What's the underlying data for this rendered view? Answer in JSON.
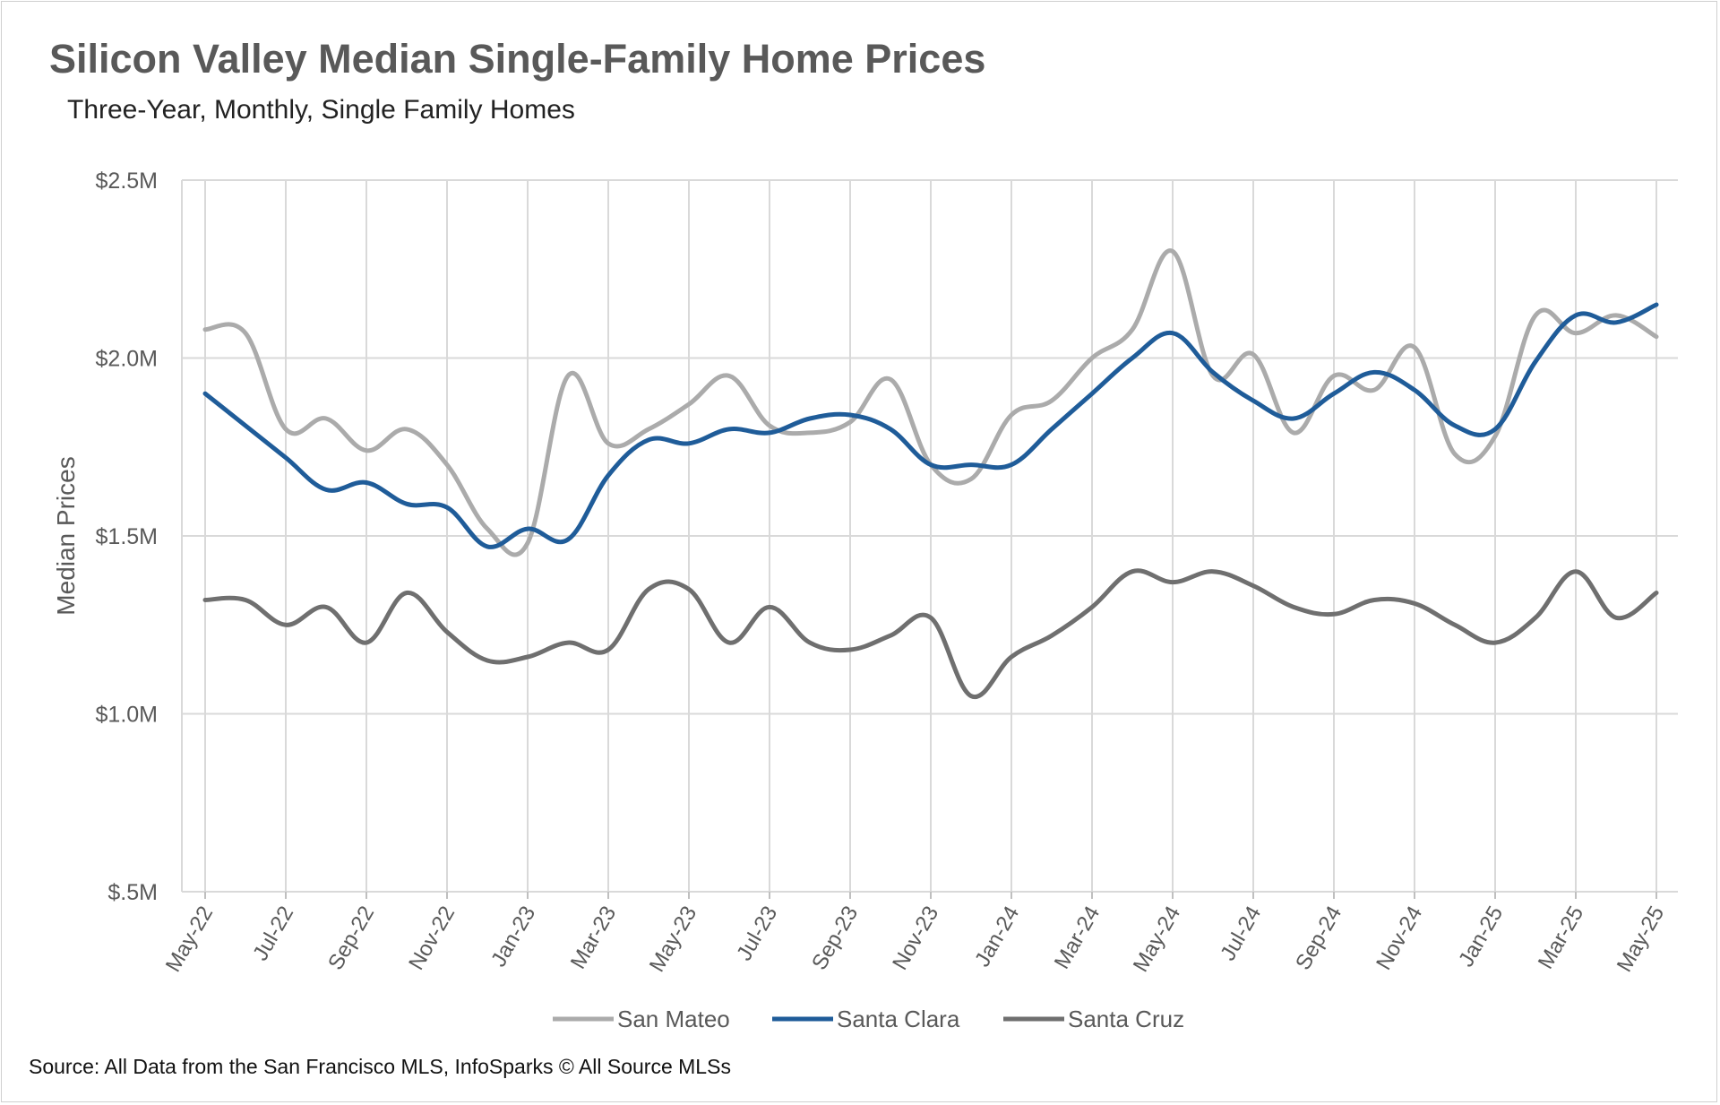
{
  "chart_data": {
    "type": "line",
    "title": "Silicon Valley Median Single-Family Home Prices",
    "subtitle": "Three-Year, Monthly, Single Family Homes",
    "ylabel": "Median Prices",
    "xlabel": "",
    "source": "Source: All Data from the San Francisco MLS, InfoSparks © All Source MLSs",
    "ylim": [
      0.5,
      2.5
    ],
    "y_unit": "$M",
    "y_ticks": [
      {
        "value": 2.5,
        "label": "$2.5M"
      },
      {
        "value": 2.0,
        "label": "$2.0M"
      },
      {
        "value": 1.5,
        "label": "$1.5M"
      },
      {
        "value": 1.0,
        "label": "$1.0M"
      },
      {
        "value": 0.5,
        "label": "$.5M"
      }
    ],
    "x": [
      "May-22",
      "Jun-22",
      "Jul-22",
      "Aug-22",
      "Sep-22",
      "Oct-22",
      "Nov-22",
      "Dec-22",
      "Jan-23",
      "Feb-23",
      "Mar-23",
      "Apr-23",
      "May-23",
      "Jun-23",
      "Jul-23",
      "Aug-23",
      "Sep-23",
      "Oct-23",
      "Nov-23",
      "Dec-23",
      "Jan-24",
      "Feb-24",
      "Mar-24",
      "Apr-24",
      "May-24",
      "Jun-24",
      "Jul-24",
      "Aug-24",
      "Sep-24",
      "Oct-24",
      "Nov-24",
      "Dec-24",
      "Jan-25",
      "Feb-25",
      "Mar-25",
      "Apr-25",
      "May-25"
    ],
    "x_tick_labels": [
      "May-22",
      "Jul-22",
      "Sep-22",
      "Nov-22",
      "Jan-23",
      "Mar-23",
      "May-23",
      "Jul-23",
      "Sep-23",
      "Nov-23",
      "Jan-24",
      "Mar-24",
      "May-24",
      "Jul-24",
      "Sep-24",
      "Nov-24",
      "Jan-25",
      "Mar-25",
      "May-25"
    ],
    "grid": true,
    "legend_position": "bottom",
    "series": [
      {
        "name": "San Mateo",
        "color": "#ababab",
        "values": [
          2.08,
          2.07,
          1.8,
          1.83,
          1.74,
          1.8,
          1.7,
          1.52,
          1.48,
          1.95,
          1.76,
          1.8,
          1.87,
          1.95,
          1.81,
          1.79,
          1.82,
          1.94,
          1.7,
          1.66,
          1.84,
          1.88,
          2.0,
          2.08,
          2.3,
          1.95,
          2.01,
          1.79,
          1.95,
          1.91,
          2.03,
          1.73,
          1.78,
          2.12,
          2.07,
          2.12,
          2.06
        ]
      },
      {
        "name": "Santa Clara",
        "color": "#1f5c99",
        "values": [
          1.9,
          1.81,
          1.72,
          1.63,
          1.65,
          1.59,
          1.58,
          1.47,
          1.52,
          1.49,
          1.67,
          1.77,
          1.76,
          1.8,
          1.79,
          1.83,
          1.84,
          1.8,
          1.7,
          1.7,
          1.7,
          1.8,
          1.9,
          2.0,
          2.07,
          1.96,
          1.88,
          1.83,
          1.9,
          1.96,
          1.91,
          1.81,
          1.8,
          1.99,
          2.12,
          2.1,
          2.15
        ]
      },
      {
        "name": "Santa Cruz",
        "color": "#6f6f6f",
        "values": [
          1.32,
          1.32,
          1.25,
          1.3,
          1.2,
          1.34,
          1.23,
          1.15,
          1.16,
          1.2,
          1.18,
          1.35,
          1.35,
          1.2,
          1.3,
          1.2,
          1.18,
          1.22,
          1.27,
          1.05,
          1.16,
          1.22,
          1.3,
          1.4,
          1.37,
          1.4,
          1.36,
          1.3,
          1.28,
          1.32,
          1.31,
          1.25,
          1.2,
          1.27,
          1.4,
          1.27,
          1.34
        ]
      }
    ]
  }
}
